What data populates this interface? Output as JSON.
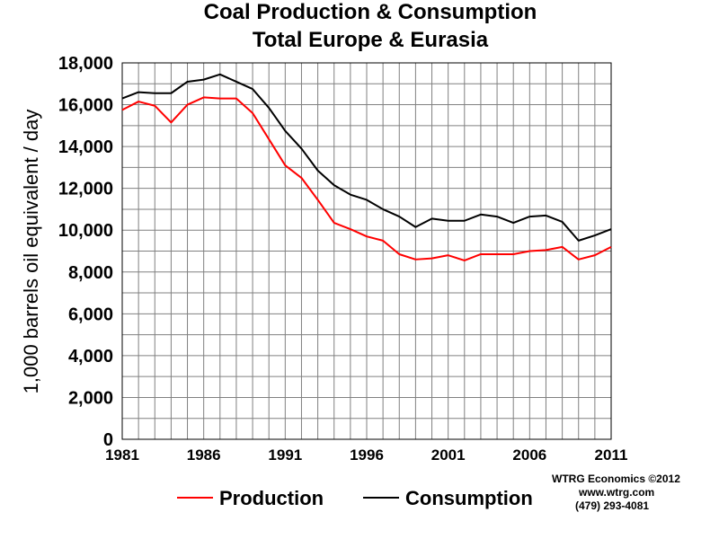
{
  "chart_data": {
    "type": "line",
    "title": [
      "Coal Production & Consumption",
      "Total Europe & Eurasia"
    ],
    "xlabel": "",
    "ylabel": "1,000 barrels oil equivalent / day",
    "x": [
      1981,
      1982,
      1983,
      1984,
      1985,
      1986,
      1987,
      1988,
      1989,
      1990,
      1991,
      1992,
      1993,
      1994,
      1995,
      1996,
      1997,
      1998,
      1999,
      2000,
      2001,
      2002,
      2003,
      2004,
      2005,
      2006,
      2007,
      2008,
      2009,
      2010,
      2011
    ],
    "xticks": [
      "1981",
      "1986",
      "1991",
      "1996",
      "2001",
      "2006",
      "2011"
    ],
    "yticks": [
      "0",
      "2,000",
      "4,000",
      "6,000",
      "8,000",
      "10,000",
      "12,000",
      "14,000",
      "16,000",
      "18,000"
    ],
    "ylim": [
      0,
      18000
    ],
    "xlim": [
      1981,
      2011
    ],
    "grid": true,
    "legend_position": "bottom",
    "series": [
      {
        "name": "Production",
        "color": "#ff0000",
        "values": [
          15750,
          16150,
          15950,
          15150,
          16000,
          16350,
          16300,
          16300,
          15600,
          14350,
          13100,
          12500,
          11450,
          10350,
          10050,
          9700,
          9500,
          8850,
          8600,
          8650,
          8800,
          8550,
          8850,
          8850,
          8850,
          9000,
          9050,
          9200,
          8600,
          8800,
          9200
        ]
      },
      {
        "name": "Consumption",
        "color": "#000000",
        "values": [
          16300,
          16600,
          16550,
          16550,
          17100,
          17200,
          17450,
          17100,
          16750,
          15850,
          14750,
          13900,
          12850,
          12150,
          11700,
          11450,
          11000,
          10650,
          10150,
          10550,
          10450,
          10450,
          10750,
          10650,
          10350,
          10650,
          10700,
          10400,
          9500,
          9750,
          10050
        ]
      }
    ]
  },
  "credit": {
    "line1": "WTRG Economics  ©2012",
    "line2": "www.wtrg.com",
    "line3": "(479) 293-4081"
  }
}
